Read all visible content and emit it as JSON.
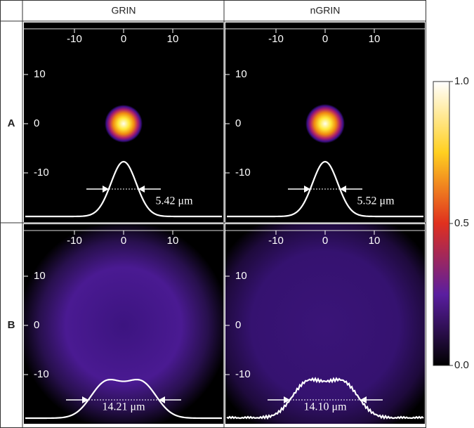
{
  "columns": [
    "GRIN",
    "nGRIN"
  ],
  "rows": [
    "A",
    "B"
  ],
  "panels": [
    [
      {
        "fwhm": "5.42 μm"
      },
      {
        "fwhm": "5.52 μm"
      }
    ],
    [
      {
        "fwhm": "14.21 μm"
      },
      {
        "fwhm": "14.10 μm"
      }
    ]
  ],
  "axis_ticks": [
    -10,
    0,
    10
  ],
  "colorbar": {
    "range": [
      0,
      1
    ],
    "ticks": [
      {
        "value": 1,
        "label": "1.0"
      },
      {
        "value": 0.5,
        "label": "0.5"
      },
      {
        "value": 0,
        "label": "0.0"
      }
    ]
  }
}
